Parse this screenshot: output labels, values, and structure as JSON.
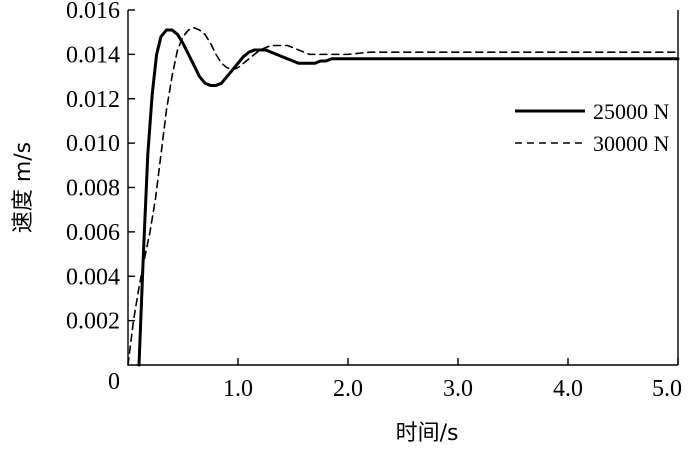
{
  "chart_data": {
    "type": "line",
    "title": "",
    "xlabel": "时间/s",
    "ylabel": "速度 m/s",
    "xlim": [
      0,
      5.0
    ],
    "ylim": [
      0,
      0.016
    ],
    "x_tick_values": [
      1.0,
      2.0,
      3.0,
      4.0,
      5.0
    ],
    "x_tick_labels": [
      "1.0",
      "2.0",
      "3.0",
      "4.0",
      "5.0"
    ],
    "x_origin_label": "0",
    "y_tick_values": [
      0.002,
      0.004,
      0.006,
      0.008,
      0.01,
      0.012,
      0.014,
      0.016
    ],
    "y_tick_labels": [
      "0.002",
      "0.004",
      "0.006",
      "0.008",
      "0.010",
      "0.012",
      "0.014",
      "0.016"
    ],
    "grid": false,
    "legend_position": "right",
    "series": [
      {
        "name": "25000 N",
        "line_style": "solid",
        "color": "#000000",
        "x": [
          0.1,
          0.14,
          0.18,
          0.22,
          0.26,
          0.3,
          0.35,
          0.4,
          0.45,
          0.5,
          0.55,
          0.6,
          0.65,
          0.7,
          0.75,
          0.8,
          0.85,
          0.9,
          0.95,
          1.0,
          1.05,
          1.1,
          1.15,
          1.2,
          1.25,
          1.3,
          1.35,
          1.4,
          1.45,
          1.5,
          1.55,
          1.6,
          1.65,
          1.7,
          1.75,
          1.8,
          1.85,
          1.9,
          1.95,
          2.0,
          2.1,
          2.5,
          3.0,
          4.0,
          5.0
        ],
        "y": [
          0.0,
          0.005,
          0.0095,
          0.0122,
          0.014,
          0.0148,
          0.0151,
          0.0151,
          0.0149,
          0.0145,
          0.014,
          0.0135,
          0.013,
          0.0127,
          0.0126,
          0.0126,
          0.0127,
          0.013,
          0.0133,
          0.0136,
          0.0139,
          0.0141,
          0.0142,
          0.0142,
          0.0142,
          0.0141,
          0.014,
          0.0139,
          0.0138,
          0.0137,
          0.0136,
          0.0136,
          0.0136,
          0.0136,
          0.0137,
          0.0137,
          0.0138,
          0.0138,
          0.0138,
          0.0138,
          0.0138,
          0.0138,
          0.0138,
          0.0138,
          0.0138
        ]
      },
      {
        "name": "30000 N",
        "line_style": "dashed",
        "color": "#000000",
        "x": [
          0.0,
          0.05,
          0.1,
          0.15,
          0.2,
          0.25,
          0.3,
          0.35,
          0.4,
          0.45,
          0.5,
          0.55,
          0.6,
          0.65,
          0.7,
          0.75,
          0.8,
          0.85,
          0.9,
          0.95,
          1.0,
          1.05,
          1.1,
          1.15,
          1.2,
          1.25,
          1.3,
          1.35,
          1.4,
          1.45,
          1.5,
          1.55,
          1.6,
          1.65,
          1.7,
          1.75,
          1.8,
          1.9,
          2.0,
          2.2,
          2.5,
          3.0,
          4.0,
          5.0
        ],
        "y": [
          0.0,
          0.002,
          0.0035,
          0.0048,
          0.006,
          0.0075,
          0.0095,
          0.0115,
          0.013,
          0.0142,
          0.0148,
          0.0151,
          0.0152,
          0.0151,
          0.0149,
          0.0145,
          0.014,
          0.0136,
          0.0134,
          0.0133,
          0.0134,
          0.0136,
          0.0138,
          0.014,
          0.0142,
          0.0143,
          0.0144,
          0.0144,
          0.0144,
          0.0144,
          0.0143,
          0.0142,
          0.0141,
          0.014,
          0.014,
          0.014,
          0.014,
          0.014,
          0.014,
          0.0141,
          0.0141,
          0.0141,
          0.0141,
          0.0141
        ]
      }
    ]
  }
}
